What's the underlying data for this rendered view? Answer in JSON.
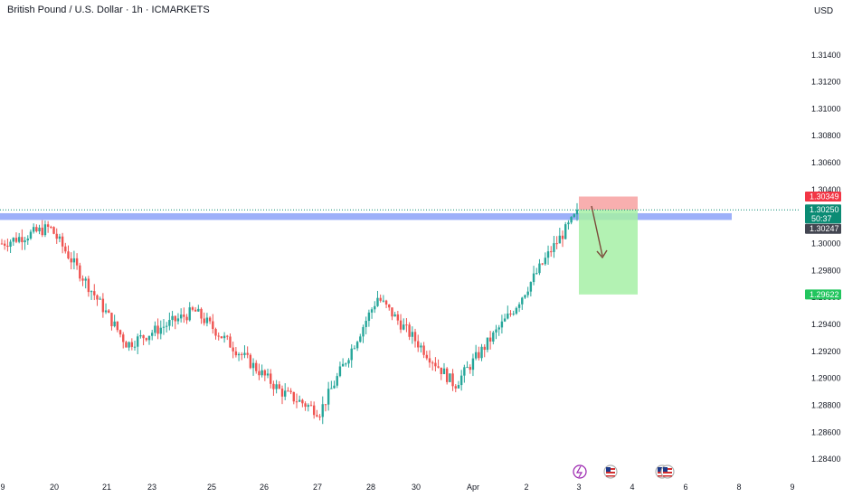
{
  "header": {
    "title": "British Pound / U.S. Dollar · 1h · ICMARKETS",
    "currency": "USD"
  },
  "colors": {
    "up": "#26a69a",
    "down": "#ef5350",
    "zone": "#5b7cf5",
    "stop": "#f7a1a1",
    "target": "#a6f0a6",
    "arrow": "#7b4a3a",
    "last_price": "#0b8b74",
    "stop_tag": "#f23645",
    "target_tag": "#22c55e",
    "dark_tag": "#434651"
  },
  "chart_data": {
    "type": "candlestick",
    "title": "British Pound / U.S. Dollar · 1h · ICMARKETS",
    "y_axis": {
      "ticks": [
        "1.31400",
        "1.31200",
        "1.31000",
        "1.30800",
        "1.30600",
        "1.30400",
        "1.30000",
        "1.29800",
        "1.29600",
        "1.29400",
        "1.29200",
        "1.29000",
        "1.28800",
        "1.28600",
        "1.28400"
      ],
      "ylim": [
        1.2832,
        1.3164
      ]
    },
    "x_axis": {
      "ticks": [
        "9",
        "20",
        "21",
        "23",
        "25",
        "26",
        "27",
        "28",
        "30",
        "Apr",
        "2",
        "3",
        "4",
        "6",
        "8",
        "9"
      ]
    },
    "series": [
      {
        "type": "candlestick",
        "points": [
          {
            "d": "19",
            "p": 1.3
          },
          {
            "d": "19",
            "p": 1.298
          },
          {
            "d": "19",
            "p": 1.2968
          },
          {
            "d": "19",
            "p": 1.296
          },
          {
            "d": "20",
            "p": 1.2998
          },
          {
            "d": "20",
            "p": 1.301
          },
          {
            "d": "20",
            "p": 1.3005
          },
          {
            "d": "20",
            "p": 1.2975
          },
          {
            "d": "20",
            "p": 1.2955
          },
          {
            "d": "21",
            "p": 1.2965
          },
          {
            "d": "21",
            "p": 1.297
          },
          {
            "d": "21",
            "p": 1.2962
          },
          {
            "d": "21",
            "p": 1.294
          },
          {
            "d": "21",
            "p": 1.2925
          },
          {
            "d": "23",
            "p": 1.2935
          },
          {
            "d": "23",
            "p": 1.292
          },
          {
            "d": "23",
            "p": 1.293
          },
          {
            "d": "23",
            "p": 1.2958
          },
          {
            "d": "23",
            "p": 1.2965
          },
          {
            "d": "25",
            "p": 1.2925
          },
          {
            "d": "25",
            "p": 1.294
          },
          {
            "d": "25",
            "p": 1.293
          },
          {
            "d": "25",
            "p": 1.2915
          },
          {
            "d": "25",
            "p": 1.2945
          },
          {
            "d": "26",
            "p": 1.2955
          },
          {
            "d": "26",
            "p": 1.295
          },
          {
            "d": "26",
            "p": 1.2945
          },
          {
            "d": "26",
            "p": 1.2925
          },
          {
            "d": "26",
            "p": 1.2908
          },
          {
            "d": "27",
            "p": 1.2888
          },
          {
            "d": "27",
            "p": 1.2876
          },
          {
            "d": "27",
            "p": 1.2882
          },
          {
            "d": "27",
            "p": 1.2905
          },
          {
            "d": "27",
            "p": 1.293
          },
          {
            "d": "28",
            "p": 1.295
          },
          {
            "d": "28",
            "p": 1.295
          },
          {
            "d": "28",
            "p": 1.2948
          },
          {
            "d": "28",
            "p": 1.2945
          },
          {
            "d": "28",
            "p": 1.295
          },
          {
            "d": "30",
            "p": 1.296
          },
          {
            "d": "30",
            "p": 1.2945
          },
          {
            "d": "30",
            "p": 1.293
          },
          {
            "d": "30",
            "p": 1.2915
          },
          {
            "d": "Apr",
            "p": 1.2922
          },
          {
            "d": "Apr",
            "p": 1.293
          },
          {
            "d": "Apr",
            "p": 1.2918
          },
          {
            "d": "Apr",
            "p": 1.2895
          },
          {
            "d": "2",
            "p": 1.291
          },
          {
            "d": "2",
            "p": 1.2925
          },
          {
            "d": "2",
            "p": 1.2933
          },
          {
            "d": "2",
            "p": 1.2922
          },
          {
            "d": "2",
            "p": 1.2918
          },
          {
            "d": "2",
            "p": 1.295
          },
          {
            "d": "3",
            "p": 1.2985
          },
          {
            "d": "3",
            "p": 1.3025
          }
        ]
      }
    ],
    "zones": {
      "resistance": {
        "from": 1.30175,
        "to": 1.30225
      },
      "stop": {
        "from": 1.3025,
        "to": 1.30349
      },
      "target": {
        "from": 1.29622,
        "to": 1.3025
      }
    },
    "price_tags": {
      "stop": "1.30349",
      "last": "1.30250",
      "countdown": "50:37",
      "zone": "1.30247",
      "target": "1.29622"
    },
    "grid": false
  }
}
